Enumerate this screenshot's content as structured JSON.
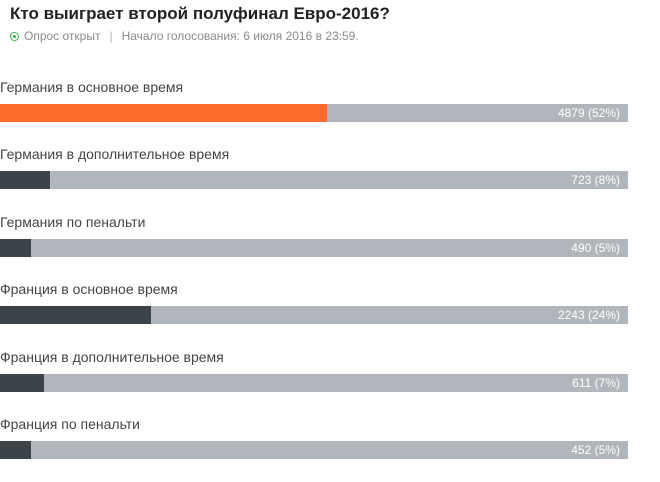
{
  "poll": {
    "title": "Кто выиграет второй полуфинал Евро-2016?",
    "status": "Опрос открыт",
    "separator": "|",
    "started": "Начало голосования: 6 июля 2016 в 23:59.",
    "colors": {
      "leader": "#ff6b2b",
      "bar": "#3d4449",
      "track": "#b0b6bb",
      "status_dot": "#2bb24c"
    },
    "options": [
      {
        "label": "Германия в основное время",
        "votes_text": "4879 (52%)",
        "fraction": 0.52,
        "leader": true
      },
      {
        "label": "Германия в дополнительное время",
        "votes_text": "723 (8%)",
        "fraction": 0.08,
        "leader": false
      },
      {
        "label": "Германия по пенальти",
        "votes_text": "490 (5%)",
        "fraction": 0.05,
        "leader": false
      },
      {
        "label": "Франция в основное время",
        "votes_text": "2243 (24%)",
        "fraction": 0.24,
        "leader": false
      },
      {
        "label": "Франция в дополнительное время",
        "votes_text": "611 (7%)",
        "fraction": 0.07,
        "leader": false
      },
      {
        "label": "Франция по пенальти",
        "votes_text": "452 (5%)",
        "fraction": 0.05,
        "leader": false
      }
    ]
  }
}
